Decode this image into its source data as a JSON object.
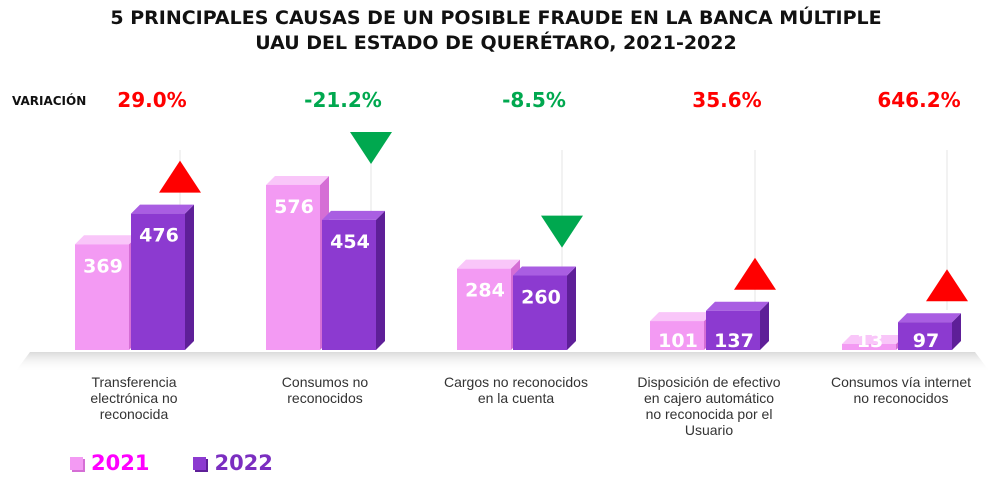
{
  "title": {
    "line1": "5 PRINCIPALES CAUSAS DE UN POSIBLE FRAUDE EN LA BANCA MÚLTIPLE",
    "line2": "UAU DEL ESTADO DE QUERÉTARO, 2021-2022"
  },
  "variation_label": "VARIACIÓN",
  "colors": {
    "series_2021": "#f39af3",
    "series_2021_top": "#f9c6f9",
    "series_2021_side": "#d56ed5",
    "series_2022": "#8c3ad0",
    "series_2022_top": "#a95ee2",
    "series_2022_side": "#5e1f98",
    "increase": "#ff0000",
    "decrease": "#00a84f",
    "legend_2021_text": "#ff00ff",
    "legend_2022_text": "#7b2ec0"
  },
  "chart_data": {
    "type": "bar",
    "title": "5 PRINCIPALES CAUSAS DE UN POSIBLE FRAUDE EN LA BANCA MÚLTIPLE UAU DEL ESTADO DE QUERÉTARO, 2021-2022",
    "categories": [
      "Transferencia electrónica no reconocida",
      "Consumos no reconocidos",
      "Cargos no reconocidos en la cuenta",
      "Disposición de efectivo en cajero automático no reconocida por el Usuario",
      "Consumos vía internet no reconocidos"
    ],
    "category_lines": [
      [
        "Transferencia",
        "electrónica no",
        "reconocida"
      ],
      [
        "Consumos no",
        "reconocidos"
      ],
      [
        "Cargos no reconocidos",
        "en la cuenta"
      ],
      [
        "Disposición de efectivo",
        "en cajero automático",
        "no reconocida por el",
        "Usuario"
      ],
      [
        "Consumos vía internet",
        "no reconocidos"
      ]
    ],
    "series": [
      {
        "name": "2021",
        "values": [
          369,
          576,
          284,
          101,
          13
        ]
      },
      {
        "name": "2022",
        "values": [
          476,
          454,
          260,
          137,
          97
        ]
      }
    ],
    "variation": [
      {
        "label": "29.0%",
        "direction": "up"
      },
      {
        "label": "-21.2%",
        "direction": "down"
      },
      {
        "label": "-8.5%",
        "direction": "down"
      },
      {
        "label": "35.6%",
        "direction": "up"
      },
      {
        "label": "646.2%",
        "direction": "up"
      }
    ],
    "ylim": [
      0,
      600
    ],
    "grid": false,
    "legend_position": "bottom-left",
    "xlabel": "",
    "ylabel": ""
  }
}
